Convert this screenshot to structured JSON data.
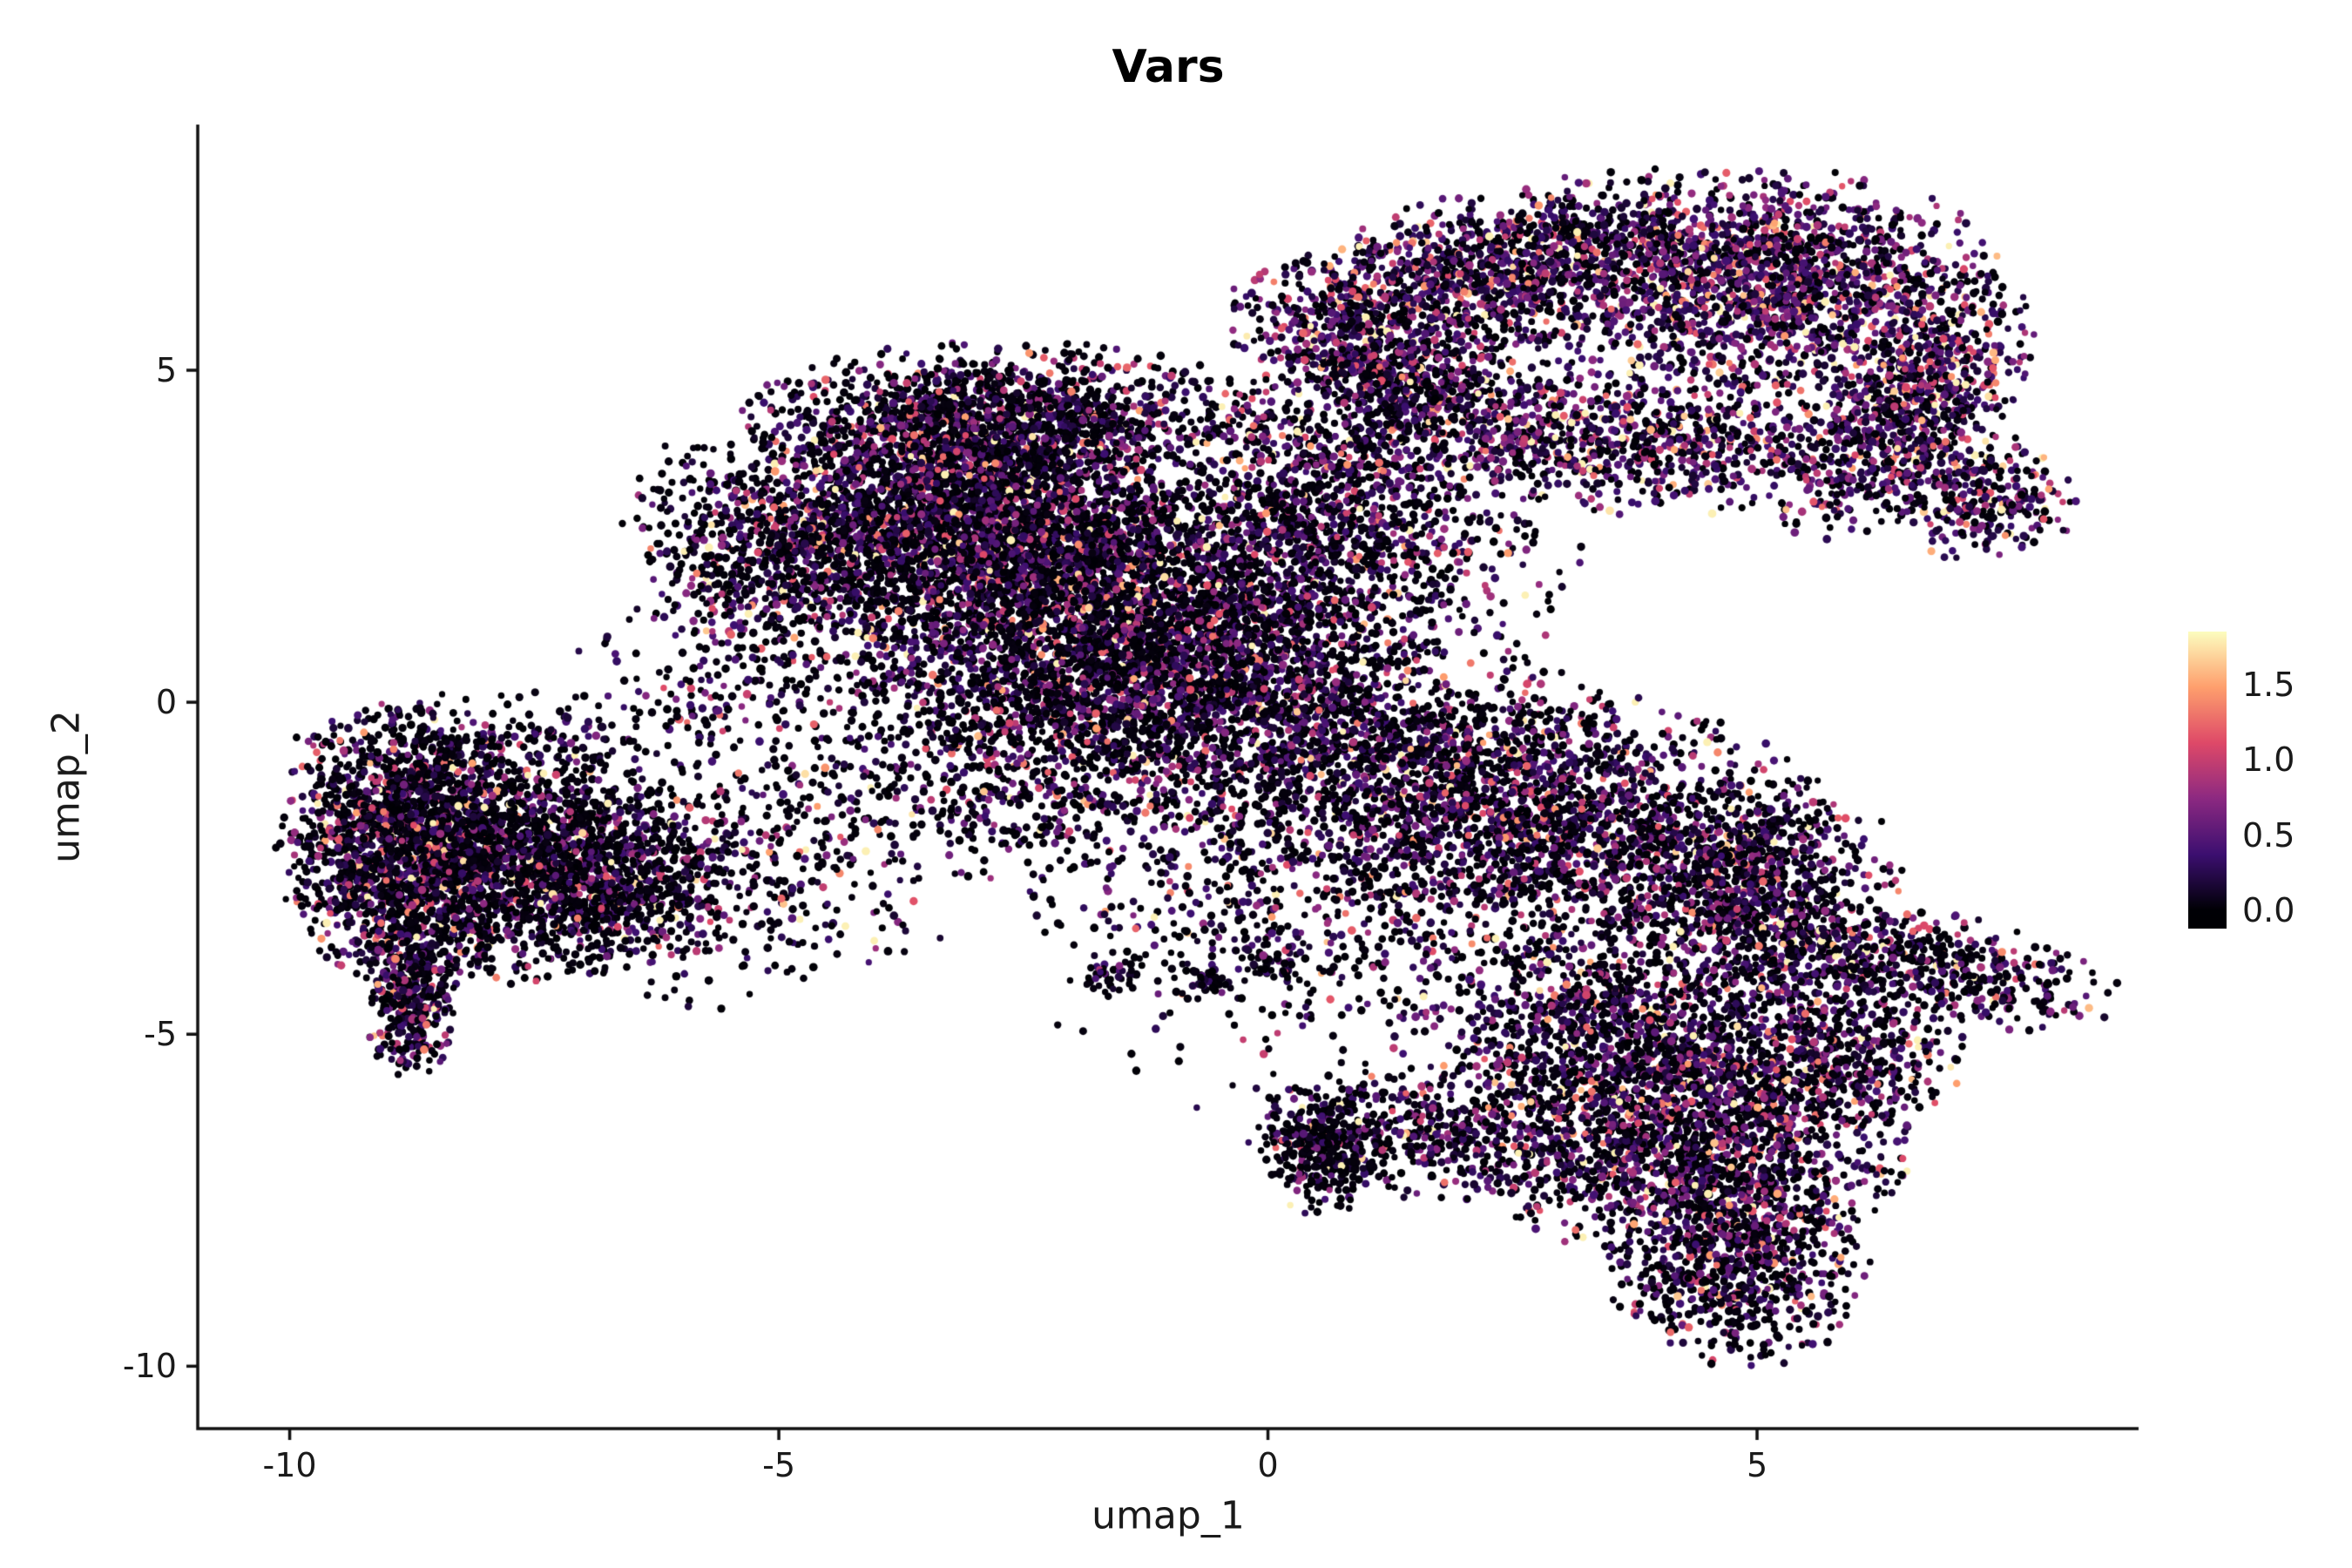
{
  "chart_data": {
    "type": "scatter",
    "title": "Vars",
    "xlabel": "umap_1",
    "ylabel": "umap_2",
    "xlim": [
      -10.94,
      8.9
    ],
    "ylim": [
      -10.94,
      8.7
    ],
    "x_ticks": [
      {
        "value": -10,
        "label": "-10"
      },
      {
        "value": -5,
        "label": "-5"
      },
      {
        "value": 0,
        "label": "0"
      },
      {
        "value": 5,
        "label": "5"
      }
    ],
    "y_ticks": [
      {
        "value": 5,
        "label": "5"
      },
      {
        "value": 0,
        "label": "0"
      },
      {
        "value": -5,
        "label": "-5"
      },
      {
        "value": -10,
        "label": "-10"
      }
    ],
    "color_scale": {
      "name": "magma",
      "vmax": 1.85,
      "bar_domain": [
        -0.12,
        1.85
      ],
      "stops": [
        {
          "t": 0.0,
          "color": "#000004"
        },
        {
          "t": 0.2,
          "color": "#3b0f70"
        },
        {
          "t": 0.4,
          "color": "#8c2981"
        },
        {
          "t": 0.6,
          "color": "#de4968"
        },
        {
          "t": 0.8,
          "color": "#fe9f6d"
        },
        {
          "t": 1.0,
          "color": "#fcfdbf"
        }
      ],
      "ticks": [
        {
          "value": 1.5,
          "label": "1.5"
        },
        {
          "value": 1.0,
          "label": "1.0"
        },
        {
          "value": 0.5,
          "label": "0.5"
        },
        {
          "value": 0.0,
          "label": "0.0"
        }
      ]
    },
    "seed": 1337,
    "point_style": {
      "radius_min_px": 3.6,
      "radius_jitter_px": 1.3
    },
    "clusters": [
      {
        "name": "left-blob-core",
        "n": 1500,
        "cx": -8.9,
        "cy": -2.1,
        "sx": 0.55,
        "sy": 0.95,
        "rot": 0,
        "hi": 0.4,
        "scale": 0.5
      },
      {
        "name": "left-blob-mid",
        "n": 1400,
        "cx": -7.8,
        "cy": -2.3,
        "sx": 0.75,
        "sy": 0.85,
        "rot": 0,
        "hi": 0.35,
        "scale": 0.5
      },
      {
        "name": "left-blob-right",
        "n": 700,
        "cx": -6.7,
        "cy": -2.6,
        "sx": 0.6,
        "sy": 0.7,
        "rot": 0,
        "hi": 0.35,
        "scale": 0.5
      },
      {
        "name": "left-tail",
        "n": 400,
        "cx": -8.75,
        "cy": -4.4,
        "sx": 0.22,
        "sy": 0.6,
        "rot": 0,
        "hi": 0.45,
        "scale": 0.5
      },
      {
        "name": "left-fringe-right",
        "n": 220,
        "cx": -5.7,
        "cy": -2.8,
        "sx": 0.7,
        "sy": 0.8,
        "rot": 0,
        "hi": 0.3,
        "scale": 0.45
      },
      {
        "name": "left-fringe-top",
        "n": 180,
        "cx": -7.8,
        "cy": -0.6,
        "sx": 1.0,
        "sy": 0.35,
        "rot": 0,
        "hi": 0.3,
        "scale": 0.45
      },
      {
        "name": "bridge-sparse",
        "n": 200,
        "cx": -4.6,
        "cy": -2.2,
        "sx": 0.9,
        "sy": 0.9,
        "rot": 0,
        "hi": 0.35,
        "scale": 0.45
      },
      {
        "name": "center-upperleft-arm",
        "n": 800,
        "cx": -5.0,
        "cy": 2.3,
        "sx": 0.65,
        "sy": 0.85,
        "rot": 35,
        "hi": 0.45,
        "scale": 0.45
      },
      {
        "name": "center-top-ridge",
        "n": 1300,
        "cx": -2.7,
        "cy": 4.3,
        "sx": 1.2,
        "sy": 0.5,
        "rot": 0,
        "hi": 0.45,
        "scale": 0.45
      },
      {
        "name": "center-core-upper",
        "n": 2000,
        "cx": -3.2,
        "cy": 3.0,
        "sx": 1.0,
        "sy": 0.8,
        "rot": 0,
        "hi": 0.45,
        "scale": 0.45
      },
      {
        "name": "center-core",
        "n": 2400,
        "cx": -2.2,
        "cy": 1.8,
        "sx": 1.2,
        "sy": 1.0,
        "rot": 0,
        "hi": 0.42,
        "scale": 0.45
      },
      {
        "name": "center-lower",
        "n": 1500,
        "cx": -1.6,
        "cy": 0.2,
        "sx": 1.3,
        "sy": 0.8,
        "rot": 0,
        "hi": 0.42,
        "scale": 0.45
      },
      {
        "name": "center-right",
        "n": 1000,
        "cx": -0.1,
        "cy": 0.9,
        "sx": 1.0,
        "sy": 1.0,
        "rot": 0,
        "hi": 0.45,
        "scale": 0.45
      },
      {
        "name": "neck-upper",
        "n": 550,
        "cx": 0.7,
        "cy": 3.3,
        "sx": 0.75,
        "sy": 0.9,
        "rot": 0,
        "hi": 0.5,
        "scale": 0.45
      },
      {
        "name": "neck-right-sparse",
        "n": 300,
        "cx": 1.6,
        "cy": 2.2,
        "sx": 0.8,
        "sy": 0.9,
        "rot": 0,
        "hi": 0.5,
        "scale": 0.45
      },
      {
        "name": "center-top-link",
        "n": 400,
        "cx": 0.0,
        "cy": 2.6,
        "sx": 0.7,
        "sy": 0.8,
        "rot": 0,
        "hi": 0.45,
        "scale": 0.45
      },
      {
        "name": "center-left-fringe",
        "n": 250,
        "cx": -5.3,
        "cy": 0.3,
        "sx": 0.8,
        "sy": 0.8,
        "rot": 0,
        "hi": 0.4,
        "scale": 0.45
      },
      {
        "name": "center-south-sparse",
        "n": 450,
        "cx": -2.5,
        "cy": -1.3,
        "sx": 1.3,
        "sy": 0.6,
        "rot": 0,
        "hi": 0.4,
        "scale": 0.45
      },
      {
        "name": "band-right-1",
        "n": 1300,
        "cx": 1.3,
        "cy": -1.0,
        "sx": 1.2,
        "sy": 0.9,
        "rot": -15,
        "hi": 0.45,
        "scale": 0.45
      },
      {
        "name": "band-right-2",
        "n": 1500,
        "cx": 3.2,
        "cy": -1.9,
        "sx": 1.2,
        "sy": 0.9,
        "rot": -15,
        "hi": 0.5,
        "scale": 0.45
      },
      {
        "name": "band-right-edge",
        "n": 700,
        "cx": 4.9,
        "cy": -2.6,
        "sx": 0.7,
        "sy": 0.7,
        "rot": -15,
        "hi": 0.5,
        "scale": 0.45
      },
      {
        "name": "band-south-sparse",
        "n": 300,
        "cx": 1.0,
        "cy": -3.2,
        "sx": 1.3,
        "sy": 0.8,
        "rot": 0,
        "hi": 0.4,
        "scale": 0.45
      },
      {
        "name": "mid-sparse-singles",
        "n": 90,
        "cx": -0.5,
        "cy": -4.0,
        "sx": 1.0,
        "sy": 0.6,
        "rot": 0,
        "hi": 0.35,
        "scale": 0.45
      },
      {
        "name": "dot-clump-1",
        "n": 35,
        "cx": -1.6,
        "cy": -4.1,
        "sx": 0.15,
        "sy": 0.12,
        "rot": 0,
        "hi": 0.35,
        "scale": 0.45
      },
      {
        "name": "dot-clump-2",
        "n": 30,
        "cx": -0.7,
        "cy": -4.25,
        "sx": 0.13,
        "sy": 0.11,
        "rot": 0,
        "hi": 0.35,
        "scale": 0.45
      },
      {
        "name": "dot-clump-3",
        "n": 25,
        "cx": 0.1,
        "cy": -4.0,
        "sx": 0.12,
        "sy": 0.1,
        "rot": 0,
        "hi": 0.35,
        "scale": 0.45
      },
      {
        "name": "topright-arc",
        "n": 1500,
        "cx": 2.5,
        "cy": 6.5,
        "sx": 1.4,
        "sy": 0.55,
        "rot": 18,
        "hi": 0.6,
        "scale": 0.5
      },
      {
        "name": "topright-arc-tail",
        "n": 250,
        "cx": 0.9,
        "cy": 5.4,
        "sx": 0.5,
        "sy": 0.4,
        "rot": 30,
        "hi": 0.55,
        "scale": 0.5
      },
      {
        "name": "topright-lobe",
        "n": 1500,
        "cx": 5.3,
        "cy": 6.3,
        "sx": 1.0,
        "sy": 0.75,
        "rot": 0,
        "hi": 0.7,
        "scale": 0.5
      },
      {
        "name": "topright-edge",
        "n": 800,
        "cx": 6.5,
        "cy": 4.4,
        "sx": 0.45,
        "sy": 0.95,
        "rot": -28,
        "hi": 0.65,
        "scale": 0.5
      },
      {
        "name": "topright-tip",
        "n": 300,
        "cx": 7.3,
        "cy": 3.1,
        "sx": 0.45,
        "sy": 0.45,
        "rot": 0,
        "hi": 0.6,
        "scale": 0.5
      },
      {
        "name": "ring-bottom-band",
        "n": 1100,
        "cx": 3.4,
        "cy": 4.0,
        "sx": 1.6,
        "sy": 0.5,
        "rot": -6,
        "hi": 0.65,
        "scale": 0.5
      },
      {
        "name": "ring-left",
        "n": 300,
        "cx": 1.5,
        "cy": 4.8,
        "sx": 0.5,
        "sy": 0.35,
        "rot": 0,
        "hi": 0.6,
        "scale": 0.5
      },
      {
        "name": "ring-hole-sparse",
        "n": 160,
        "cx": 3.4,
        "cy": 5.3,
        "sx": 1.0,
        "sy": 0.55,
        "rot": 0,
        "hi": 0.6,
        "scale": 0.5
      },
      {
        "name": "right-tail",
        "n": 550,
        "cx": 6.7,
        "cy": -3.9,
        "sx": 1.0,
        "sy": 0.35,
        "rot": -20,
        "hi": 0.5,
        "scale": 0.45
      },
      {
        "name": "bottomright-main",
        "n": 2300,
        "cx": 4.2,
        "cy": -6.2,
        "sx": 1.15,
        "sy": 1.0,
        "rot": 0,
        "hi": 0.5,
        "scale": 0.45
      },
      {
        "name": "bottomright-upper",
        "n": 500,
        "cx": 3.4,
        "cy": -4.6,
        "sx": 1.0,
        "sy": 0.6,
        "rot": 0,
        "hi": 0.5,
        "scale": 0.45
      },
      {
        "name": "bottomright-protrusion",
        "n": 800,
        "cx": 4.8,
        "cy": -8.4,
        "sx": 0.6,
        "sy": 0.75,
        "rot": 0,
        "hi": 0.45,
        "scale": 0.45
      },
      {
        "name": "bottomright-spur",
        "n": 400,
        "cx": 1.5,
        "cy": -6.5,
        "sx": 0.8,
        "sy": 0.45,
        "rot": 0,
        "hi": 0.45,
        "scale": 0.45
      },
      {
        "name": "bottomright-clump",
        "n": 300,
        "cx": 0.55,
        "cy": -6.7,
        "sx": 0.3,
        "sy": 0.45,
        "rot": 0,
        "hi": 0.25,
        "scale": 0.45
      },
      {
        "name": "bottomright-east",
        "n": 350,
        "cx": 5.9,
        "cy": -5.2,
        "sx": 0.6,
        "sy": 0.6,
        "rot": 0,
        "hi": 0.5,
        "scale": 0.45
      },
      {
        "name": "bottomright-ne-sparse",
        "n": 200,
        "cx": 5.3,
        "cy": -3.9,
        "sx": 0.5,
        "sy": 0.4,
        "rot": 0,
        "hi": 0.5,
        "scale": 0.45
      },
      {
        "name": "scatter-sparse-low",
        "n": 150,
        "cx": 1.8,
        "cy": -4.6,
        "sx": 1.6,
        "sy": 0.9,
        "rot": 0,
        "hi": 0.4,
        "scale": 0.45
      },
      {
        "name": "scatter-sparse-mid",
        "n": 250,
        "cx": -0.5,
        "cy": -2.3,
        "sx": 1.2,
        "sy": 0.8,
        "rot": 0,
        "hi": 0.4,
        "scale": 0.45
      }
    ]
  }
}
